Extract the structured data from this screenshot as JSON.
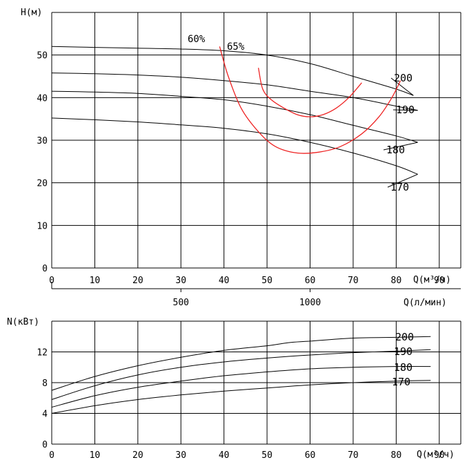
{
  "chart_data": [
    {
      "type": "line",
      "title": "",
      "ylabel": "H(м)",
      "xlabel": "Q(м³/ч)",
      "xlabel2": "Q(л/мин)",
      "xlim": [
        0,
        95
      ],
      "ylim": [
        0,
        60
      ],
      "xticks": [
        0,
        10,
        20,
        30,
        40,
        50,
        60,
        70,
        80,
        90
      ],
      "yticks": [
        0,
        10,
        20,
        30,
        40,
        50
      ],
      "xticks2": [
        500,
        1000
      ],
      "grid": true,
      "colors": {
        "head": "#000000",
        "efficiency": "#ee2222"
      },
      "series": [
        {
          "name": "200",
          "x": [
            0,
            10,
            20,
            30,
            40,
            50,
            60,
            70,
            80,
            84
          ],
          "y": [
            52,
            51.8,
            51.6,
            51.4,
            51,
            50,
            48,
            45,
            42,
            40.5
          ]
        },
        {
          "name": "190",
          "x": [
            0,
            10,
            20,
            30,
            40,
            50,
            60,
            70,
            80,
            85
          ],
          "y": [
            45.8,
            45.6,
            45.3,
            44.8,
            44,
            43,
            41.5,
            40,
            38,
            37
          ]
        },
        {
          "name": "180",
          "x": [
            0,
            10,
            20,
            30,
            40,
            50,
            60,
            70,
            80,
            85
          ],
          "y": [
            41.5,
            41.3,
            41,
            40.3,
            39.5,
            38,
            36,
            33.5,
            31,
            29.5
          ]
        },
        {
          "name": "170",
          "x": [
            0,
            10,
            20,
            30,
            40,
            50,
            60,
            70,
            80,
            85
          ],
          "y": [
            35.2,
            34.8,
            34.3,
            33.6,
            32.8,
            31.5,
            29.5,
            27,
            24,
            22
          ]
        }
      ],
      "efficiency": [
        {
          "name": "60%",
          "x": [
            39,
            41,
            44,
            48,
            52,
            57,
            62,
            67,
            72,
            76,
            79,
            81
          ],
          "y": [
            52,
            45,
            37.5,
            32,
            28.5,
            27,
            27.2,
            28.5,
            31.5,
            35.5,
            40,
            44
          ]
        },
        {
          "name": "65%",
          "x": [
            48,
            49,
            51,
            54,
            57,
            60,
            63,
            66,
            69,
            72
          ],
          "y": [
            47,
            42,
            39.5,
            37.5,
            36,
            35.5,
            36,
            37.5,
            40,
            43.5
          ]
        }
      ]
    },
    {
      "type": "line",
      "title": "",
      "ylabel": "N(кВт)",
      "xlabel": "Q(м³/ч)",
      "xlim": [
        0,
        95
      ],
      "ylim": [
        0,
        16
      ],
      "xticks": [
        0,
        10,
        20,
        30,
        40,
        50,
        60,
        70,
        80,
        90
      ],
      "yticks": [
        0,
        4,
        8,
        12
      ],
      "grid": true,
      "series": [
        {
          "name": "200",
          "x": [
            0,
            10,
            20,
            30,
            40,
            50,
            55,
            60,
            70,
            80,
            88
          ],
          "y": [
            7,
            8.8,
            10.2,
            11.3,
            12.2,
            12.8,
            13.2,
            13.4,
            13.8,
            13.9,
            14
          ]
        },
        {
          "name": "190",
          "x": [
            0,
            10,
            20,
            30,
            40,
            50,
            60,
            70,
            80,
            88
          ],
          "y": [
            5.8,
            7.6,
            9,
            10,
            10.7,
            11.2,
            11.6,
            11.9,
            12.1,
            12.3
          ]
        },
        {
          "name": "180",
          "x": [
            0,
            10,
            20,
            30,
            40,
            50,
            60,
            70,
            80,
            88
          ],
          "y": [
            4.8,
            6.3,
            7.4,
            8.2,
            8.9,
            9.4,
            9.8,
            10,
            10.1,
            10.1
          ]
        },
        {
          "name": "170",
          "x": [
            0,
            10,
            20,
            30,
            40,
            50,
            60,
            70,
            80,
            88
          ],
          "y": [
            4,
            5,
            5.8,
            6.4,
            6.9,
            7.3,
            7.7,
            8,
            8.2,
            8.3
          ]
        }
      ]
    }
  ]
}
